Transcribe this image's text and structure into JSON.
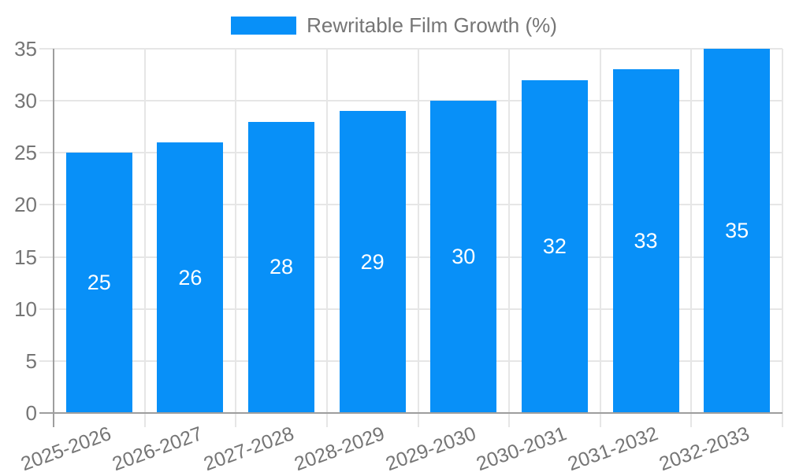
{
  "legend": {
    "label": "Rewritable Film Growth (%)"
  },
  "chart_data": {
    "type": "bar",
    "title": "",
    "xlabel": "",
    "ylabel": "",
    "legend_entries": [
      "Rewritable Film Growth (%)"
    ],
    "legend_position": "top-center",
    "categories": [
      "2025-2026",
      "2026-2027",
      "2027-2028",
      "2028-2029",
      "2029-2030",
      "2030-2031",
      "2031-2032",
      "2032-2033"
    ],
    "series": [
      {
        "name": "Rewritable Film Growth (%)",
        "values": [
          25,
          26,
          28,
          29,
          30,
          32,
          33,
          35
        ]
      }
    ],
    "values": [
      25,
      26,
      28,
      29,
      30,
      32,
      33,
      35
    ],
    "value_labels_shown": true,
    "ylim": [
      0,
      35
    ],
    "yticks": [
      0,
      5,
      10,
      15,
      20,
      25,
      30,
      35
    ],
    "grid": true,
    "colors": {
      "bar": "#0890f8",
      "grid": "#e6e6e6",
      "axis": "#9e9e9e",
      "text": "#757575",
      "value_label": "#ffffff",
      "background": "#ffffff"
    }
  }
}
